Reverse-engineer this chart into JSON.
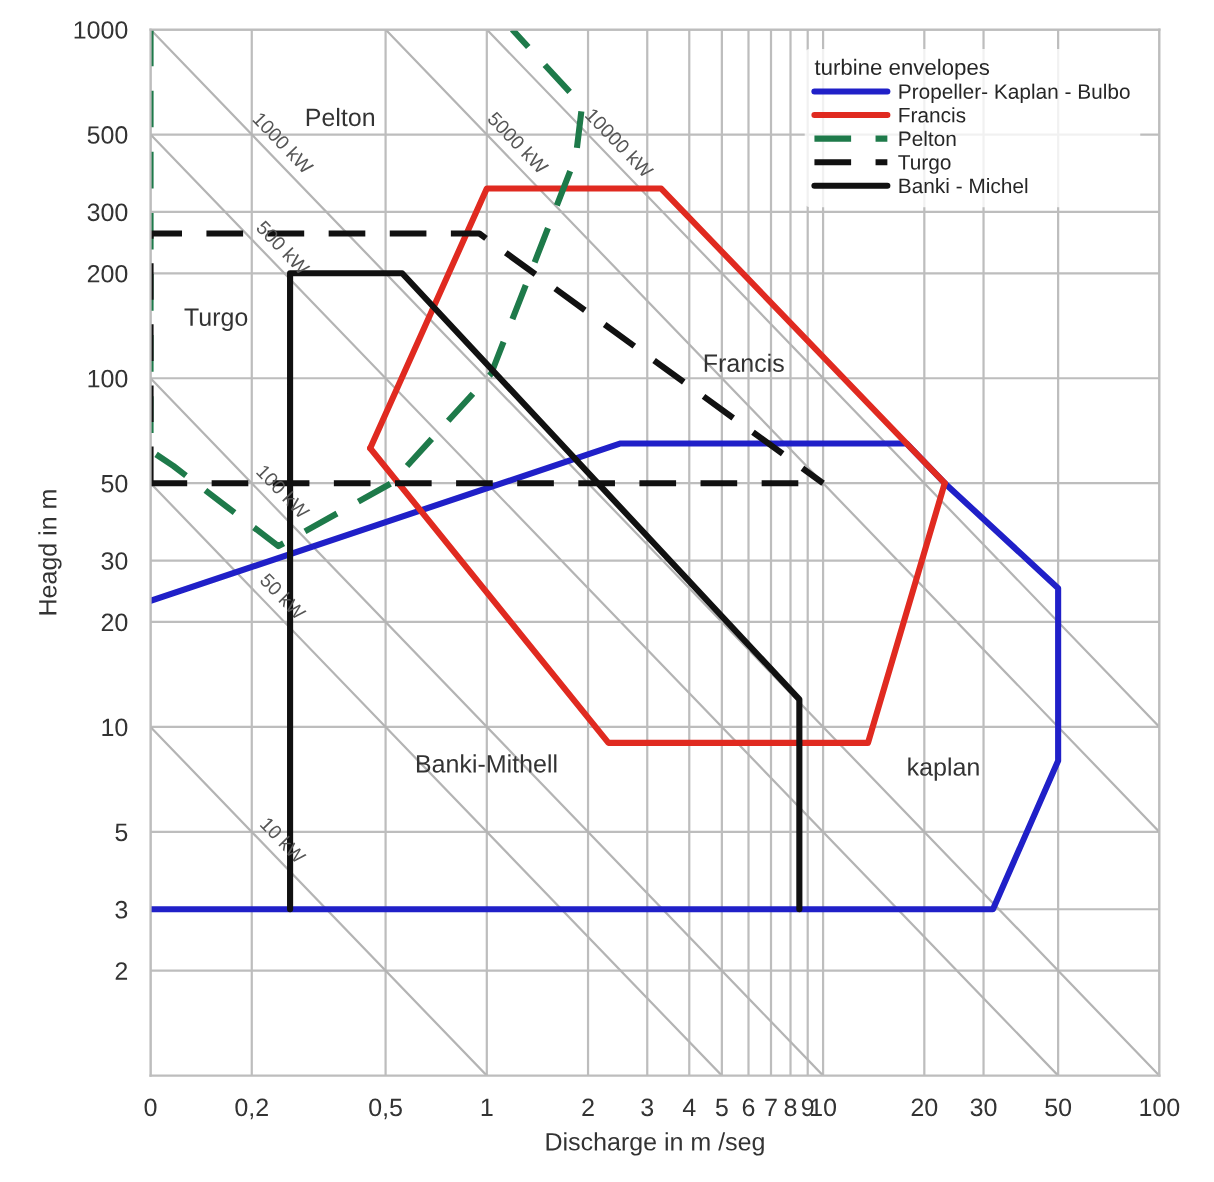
{
  "chart_data": {
    "type": "line",
    "xlabel": "Discharge in m /seg",
    "ylabel": "Heagd in m",
    "legend_title": "turbine envelopes",
    "log": "xy",
    "xlim": [
      0.1,
      100
    ],
    "ylim": [
      1,
      1000
    ],
    "xticks": [
      {
        "value": 0.1,
        "label": "0"
      },
      {
        "value": 0.2,
        "label": "0,2"
      },
      {
        "value": 0.5,
        "label": "0,5"
      },
      1,
      2,
      3,
      4,
      5,
      6,
      7,
      8,
      9,
      10,
      20,
      30,
      50,
      100
    ],
    "yticks": [
      2,
      3,
      5,
      10,
      20,
      30,
      50,
      100,
      200,
      300,
      500,
      1000
    ],
    "grid": true,
    "legend": "top right",
    "series": [
      {
        "name": "10 kW",
        "color": "#b4b4b4",
        "x": [
          0.1,
          1
        ],
        "values": [
          10,
          1
        ]
      },
      {
        "name": "50 kW",
        "color": "#b4b4b4",
        "x": [
          0.1,
          5
        ],
        "values": [
          50,
          1
        ]
      },
      {
        "name": "100 kW",
        "color": "#b4b4b4",
        "x": [
          0.1,
          10
        ],
        "values": [
          100,
          1
        ]
      },
      {
        "name": "500 kW",
        "color": "#b4b4b4",
        "x": [
          0.1,
          50
        ],
        "values": [
          500,
          1
        ]
      },
      {
        "name": "1000 kW",
        "color": "#b4b4b4",
        "x": [
          0.1,
          100
        ],
        "values": [
          1000,
          1
        ]
      },
      {
        "name": "5000 kW",
        "color": "#b4b4b4",
        "x": [
          0.5,
          100
        ],
        "values": [
          1000,
          5
        ]
      },
      {
        "name": "10000 kW",
        "color": "#b4b4b4",
        "x": [
          1,
          100
        ],
        "values": [
          1000,
          10
        ]
      },
      {
        "name": "Propeller- Kaplan - Bulbo",
        "color": "#2020c8",
        "line_style": "solid",
        "x": [
          0.1,
          32,
          50,
          50,
          23,
          17.7,
          2.5,
          0.1
        ],
        "values": [
          3,
          3,
          8,
          25,
          50,
          65,
          65,
          23
        ]
      },
      {
        "name": "Francis",
        "color": "#e02a20",
        "line_style": "solid",
        "x": [
          0.45,
          1.0,
          3.3,
          23
        ],
        "values": [
          63,
          350,
          350,
          50
        ]
      },
      {
        "color": "#e02a20",
        "line_style": "solid",
        "x": [
          0.45,
          2.3,
          13.6,
          23
        ],
        "values": [
          63,
          9,
          9,
          50
        ]
      },
      {
        "name": "Pelton",
        "color": "#1e7a4a",
        "line_style": "dashed",
        "x": [
          0.1,
          0.1,
          0.117,
          0.24,
          0.52,
          1.03,
          1.84,
          1.92,
          1.19
        ],
        "values": [
          1000,
          62,
          56,
          33,
          50,
          103,
          432,
          606,
          1000
        ]
      },
      {
        "name": "Turgo",
        "color": "#111111",
        "line_style": "dashed",
        "x": [
          0.1,
          0.1,
          0.95,
          10
        ],
        "values": [
          50,
          260,
          260,
          50
        ]
      },
      {
        "color": "#111111",
        "line_style": "dashed",
        "x": [
          0.1,
          10
        ],
        "values": [
          50,
          50
        ]
      },
      {
        "name": "Banki - Michel",
        "color": "#111111",
        "line_style": "solid",
        "x": [
          0.26,
          0.26,
          0.56,
          8.5,
          8.5
        ],
        "values": [
          3,
          200,
          200,
          12,
          3
        ]
      }
    ],
    "annotations": [
      "Pelton",
      "Turgo",
      "Francis",
      "Banki-Mithell",
      "kaplan"
    ]
  }
}
